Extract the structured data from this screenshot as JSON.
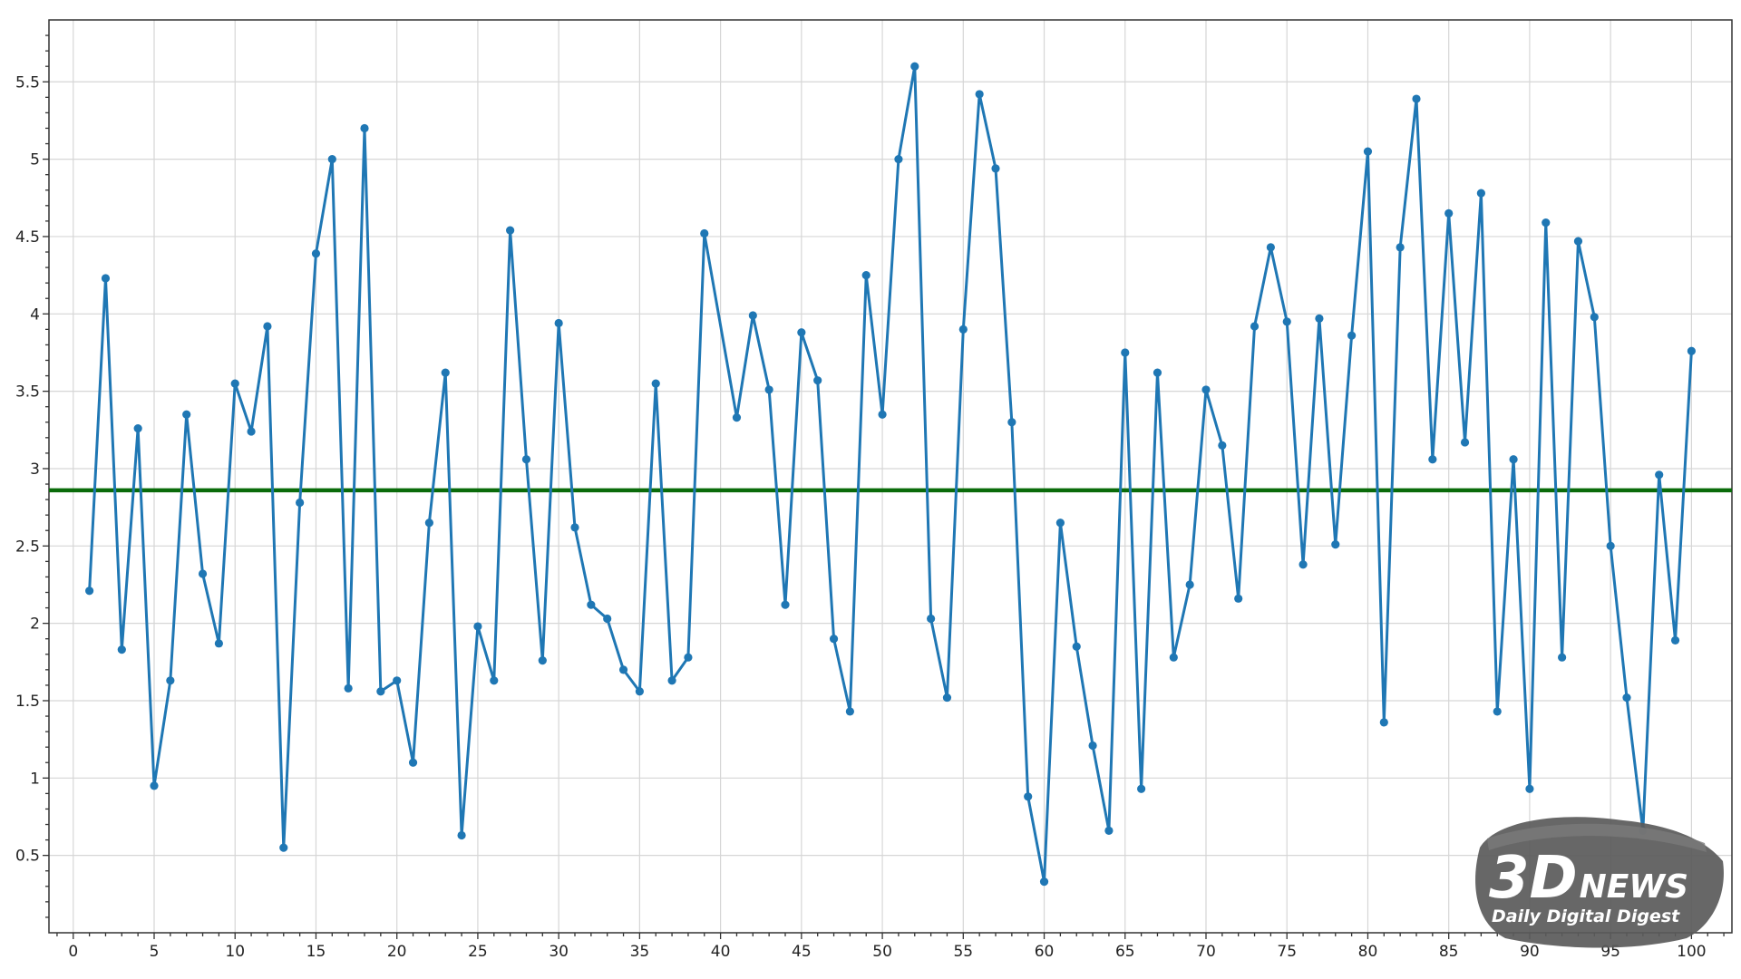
{
  "chart_data": {
    "type": "line",
    "title": "",
    "xlabel": "",
    "ylabel": "",
    "xlim": [
      -1.5,
      102.5
    ],
    "ylim": [
      0.0,
      5.9
    ],
    "grid": true,
    "xticks": [
      0,
      5,
      10,
      15,
      20,
      25,
      30,
      35,
      40,
      45,
      50,
      55,
      60,
      65,
      70,
      75,
      80,
      85,
      90,
      95,
      100
    ],
    "xtick_labels": [
      "0",
      "5",
      "10",
      "15",
      "20",
      "25",
      "30",
      "35",
      "40",
      "45",
      "50",
      "55",
      "60",
      "65",
      "70",
      "75",
      "80",
      "85",
      "90",
      "95",
      "100"
    ],
    "yticks": [
      0.5,
      1,
      1.5,
      2,
      2.5,
      3,
      3.5,
      4,
      4.5,
      5,
      5.5
    ],
    "ytick_labels": [
      "0.5",
      "1",
      "1.5",
      "2",
      "2.5",
      "3",
      "3.5",
      "4",
      "4.5",
      "5",
      "5.5"
    ],
    "series": [
      {
        "color": "#1f77b4",
        "x": [
          1,
          2,
          3,
          4,
          5,
          6,
          7,
          8,
          9,
          10,
          11,
          12,
          13,
          14,
          15,
          16,
          17,
          18,
          19,
          20,
          21,
          22,
          23,
          24,
          25,
          26,
          27,
          28,
          29,
          30,
          31,
          32,
          33,
          34,
          35,
          36,
          37,
          38,
          39,
          41,
          42,
          43,
          44,
          45,
          46,
          47,
          48,
          49,
          50,
          51,
          52,
          53,
          54,
          55,
          56,
          57,
          58,
          59,
          60,
          61,
          62,
          63,
          64,
          65,
          66,
          67,
          68,
          69,
          70,
          71,
          72,
          73,
          74,
          75,
          76,
          77,
          78,
          79,
          80,
          81,
          82,
          83,
          84,
          85,
          86,
          87,
          88,
          89,
          90,
          91,
          92,
          93,
          94,
          95,
          96,
          97,
          98,
          99,
          100
        ],
        "y": [
          2.21,
          4.23,
          1.83,
          3.26,
          0.95,
          1.63,
          3.35,
          2.32,
          1.87,
          3.55,
          3.24,
          3.92,
          0.55,
          2.78,
          4.39,
          5.0,
          1.58,
          5.2,
          1.56,
          1.63,
          1.1,
          2.65,
          3.62,
          0.63,
          1.98,
          1.63,
          4.54,
          3.06,
          1.76,
          3.94,
          2.62,
          2.12,
          2.03,
          1.7,
          1.56,
          3.55,
          1.63,
          1.78,
          4.52,
          3.33,
          3.99,
          3.51,
          2.12,
          3.88,
          3.57,
          1.9,
          1.43,
          4.25,
          3.35,
          5.0,
          5.6,
          2.03,
          1.52,
          3.9,
          5.42,
          4.94,
          3.3,
          0.88,
          0.33,
          2.65,
          1.85,
          1.21,
          0.66,
          3.75,
          0.93,
          3.62,
          1.78,
          2.25,
          3.51,
          3.15,
          2.16,
          3.92,
          4.43,
          3.95,
          2.38,
          3.97,
          2.51,
          3.86,
          5.05,
          1.36,
          4.43,
          5.39,
          3.06,
          4.65,
          3.17,
          4.78,
          1.43,
          3.06,
          0.93,
          4.59,
          1.78,
          4.47,
          3.98,
          2.5,
          1.52,
          0.66,
          2.96,
          1.89,
          3.76
        ]
      }
    ],
    "reference_line": {
      "y": 2.86,
      "color": "#0a6b0a"
    }
  },
  "watermark": {
    "brand": "3DNEWS",
    "brand_prefix": "3D",
    "brand_suffix": "NEWS",
    "tagline": "Daily Digital Digest"
  }
}
